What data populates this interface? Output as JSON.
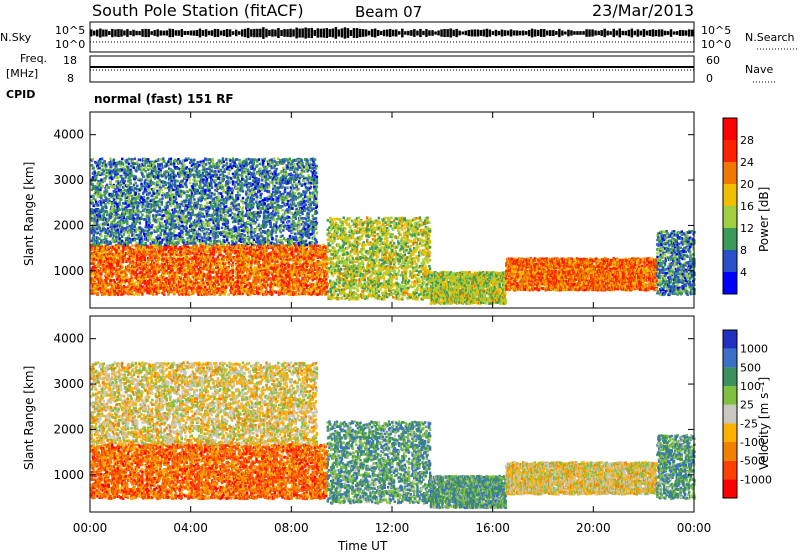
{
  "header": {
    "station": "South Pole Station (fitACF)",
    "beam": "Beam 07",
    "date": "23/Mar/2013"
  },
  "top_panels": {
    "nsky_label": "N.Sky",
    "nsearch_label": "N.Search",
    "freq_label_line1": "Freq.",
    "freq_label_line2": "[MHz]",
    "nave_label": "Nave",
    "cpid_label": "CPID",
    "cpid_value": "normal (fast) 151 RF",
    "nsky_ticks": [
      "10^5",
      "10^0"
    ],
    "nsearch_ticks": [
      "10^5",
      "10^0"
    ],
    "freq_ticks": [
      "18",
      "8"
    ],
    "nave_ticks": [
      "60",
      "0"
    ]
  },
  "chart_data": [
    {
      "type": "heatmap",
      "panel": "power",
      "ylabel": "Slant Range [km]",
      "xlabel": "",
      "x_range_hours": [
        0,
        24
      ],
      "ylim": [
        180,
        4500
      ],
      "y_ticks": [
        "1000",
        "2000",
        "3000",
        "4000"
      ],
      "x_ticks": [
        "00:00",
        "04:00",
        "08:00",
        "12:00",
        "16:00",
        "20:00",
        "00:00"
      ],
      "colorbar": {
        "label": "Power [dB]",
        "tick_labels": [
          "4",
          "8",
          "12",
          "16",
          "20",
          "24",
          "28"
        ],
        "colors": [
          "#0000ff",
          "#2850c8",
          "#3a9a5a",
          "#a0d040",
          "#f0c000",
          "#f07800",
          "#ff2000",
          "#ff0000"
        ]
      },
      "regions": [
        {
          "t0": 0.0,
          "t1": 9.4,
          "r0": 500,
          "r1": 1600,
          "level": "high"
        },
        {
          "t0": 0.0,
          "t1": 9.0,
          "r0": 1600,
          "r1": 3500,
          "level": "low"
        },
        {
          "t0": 9.4,
          "t1": 13.5,
          "r0": 400,
          "r1": 2200,
          "level": "mid"
        },
        {
          "t0": 13.5,
          "t1": 16.5,
          "r0": 300,
          "r1": 1000,
          "level": "mid"
        },
        {
          "t0": 16.5,
          "t1": 22.5,
          "r0": 600,
          "r1": 1300,
          "level": "high"
        },
        {
          "t0": 22.5,
          "t1": 24.0,
          "r0": 500,
          "r1": 1900,
          "level": "low"
        }
      ]
    },
    {
      "type": "heatmap",
      "panel": "velocity",
      "ylabel": "Slant Range [km]",
      "xlabel": "Time UT",
      "x_range_hours": [
        0,
        24
      ],
      "ylim": [
        180,
        4500
      ],
      "y_ticks": [
        "1000",
        "2000",
        "3000",
        "4000"
      ],
      "x_ticks": [
        "00:00",
        "04:00",
        "08:00",
        "12:00",
        "16:00",
        "20:00",
        "00:00"
      ],
      "colorbar": {
        "label": "Velocity [m s⁻¹]",
        "tick_labels": [
          "1000",
          "500",
          "100",
          "25",
          "-25",
          "-100",
          "-500",
          "-1000"
        ],
        "colors": [
          "#2030c0",
          "#3a70c8",
          "#3c9060",
          "#80c040",
          "#c8c8c0",
          "#ffb000",
          "#f08000",
          "#ff4000",
          "#ff0000"
        ]
      },
      "regions": [
        {
          "t0": 0.0,
          "t1": 9.4,
          "r0": 500,
          "r1": 1700,
          "level": "negative"
        },
        {
          "t0": 0.0,
          "t1": 9.0,
          "r0": 1700,
          "r1": 3500,
          "level": "mixed"
        },
        {
          "t0": 9.4,
          "t1": 13.5,
          "r0": 400,
          "r1": 2200,
          "level": "positive"
        },
        {
          "t0": 13.5,
          "t1": 16.5,
          "r0": 300,
          "r1": 1000,
          "level": "positive"
        },
        {
          "t0": 16.5,
          "t1": 22.5,
          "r0": 600,
          "r1": 1300,
          "level": "mixed"
        },
        {
          "t0": 22.5,
          "t1": 24.0,
          "r0": 500,
          "r1": 1900,
          "level": "positive"
        }
      ]
    }
  ]
}
